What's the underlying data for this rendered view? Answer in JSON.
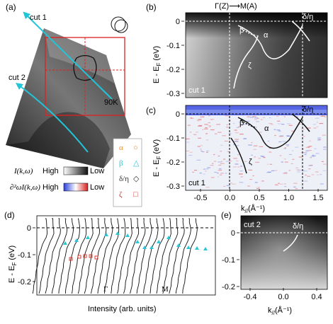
{
  "panels": {
    "a": {
      "letter": "(a)",
      "cut1": "cut 1",
      "cut2": "cut 2",
      "temperature": "90K"
    },
    "b": {
      "letter": "(b)",
      "top_axis": "Γ(Z)⟶M(A)",
      "ylabel": "E - E",
      "ylabel_sub": "F",
      "ylabel_unit": "(eV)",
      "yticks": [
        "0",
        "-0.1",
        "-0.2",
        "-0.3"
      ],
      "cut": "cut 1",
      "bands": [
        "β",
        "α",
        "ζ",
        "δ/η"
      ]
    },
    "c": {
      "letter": "(c)",
      "ylabel": "E - E",
      "ylabel_sub": "F",
      "ylabel_unit": "(eV)",
      "yticks": [
        "0",
        "-0.1",
        "-0.2",
        "-0.3"
      ],
      "xticks": [
        "-0.5",
        "0.0",
        "0.5",
        "1.0",
        "1.5"
      ],
      "xlabel": "k",
      "xlabel_sub": "//",
      "xlabel_unit": "(Å⁻¹)",
      "cut": "cut 1",
      "bands": [
        "β",
        "α",
        "ζ",
        "δ/η"
      ]
    },
    "d": {
      "letter": "(d)",
      "ylabel": "E - E",
      "ylabel_sub": "F",
      "ylabel_unit": "(eV)",
      "yticks": [
        "0",
        "-0.1",
        "-0.2"
      ],
      "xlabel": "Intensity (arb. units)",
      "gamma": "Γ",
      "m": "M"
    },
    "e": {
      "letter": "(e)",
      "cut": "cut 2",
      "band": "δ/η",
      "yticks": [
        "0",
        "-0.1",
        "-0.2"
      ],
      "xticks": [
        "-0.4",
        "0.0",
        "0.4"
      ],
      "xlabel": "k",
      "xlabel_sub": "//",
      "xlabel_unit": "(Å⁻¹)"
    }
  },
  "legend": {
    "intensity_label": "I(k,ω)",
    "high": "High",
    "low": "Low",
    "curvature_label": "∂²ωI(k,ω)",
    "bands": [
      {
        "label": "α",
        "color": "#f08a1c",
        "marker": "○"
      },
      {
        "label": "β",
        "color": "#2bc5d6",
        "marker": "△"
      },
      {
        "label": "δ/η",
        "color": "#333333",
        "marker": "◇"
      },
      {
        "label": "ζ",
        "color": "#e0392e",
        "marker": "□"
      }
    ]
  },
  "colors": {
    "cyan": "#22c4d8",
    "red": "#e02020",
    "dark": "#111111"
  }
}
